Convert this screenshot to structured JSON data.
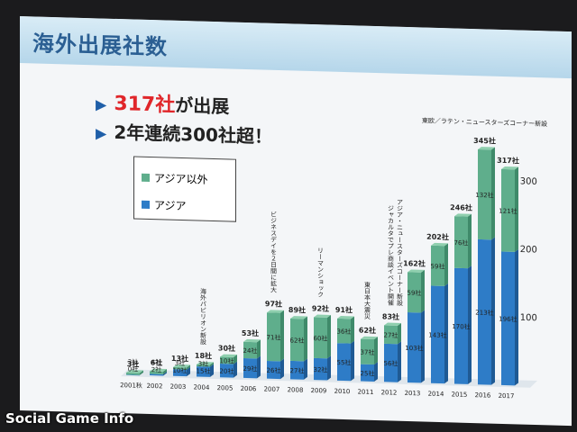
{
  "slide": {
    "title": "海外出展社数",
    "bullet1_highlight": "317社",
    "bullet1_rest": "が出展",
    "bullet2": "2年連続300社超！"
  },
  "legend": {
    "other": "アジア以外",
    "asia": "アジア"
  },
  "watermark": "Social Game Info",
  "colors": {
    "asia": "#2e7cc7",
    "other": "#5fae8c",
    "title": "#2b5f93",
    "highlight": "#e0262a"
  },
  "chart_data": {
    "type": "bar",
    "stacked": true,
    "categories": [
      "2001秋",
      "2002",
      "2003",
      "2004",
      "2005",
      "2006",
      "2007",
      "2008",
      "2009",
      "2010",
      "2011",
      "2012",
      "2013",
      "2014",
      "2015",
      "2016",
      "2017"
    ],
    "series": [
      {
        "name": "アジア",
        "values": [
          0,
          2,
          10,
          15,
          20,
          29,
          26,
          27,
          32,
          55,
          25,
          56,
          103,
          143,
          170,
          213,
          196
        ],
        "labels": [
          "0社",
          "2社",
          "10社",
          "15社",
          "20社",
          "29社",
          "26社",
          "27社",
          "32社",
          "55社",
          "25社",
          "56社",
          "103社",
          "143社",
          "170社",
          "213社",
          "196社"
        ]
      },
      {
        "name": "アジア以外",
        "values": [
          3,
          4,
          3,
          3,
          10,
          24,
          71,
          62,
          60,
          36,
          37,
          27,
          59,
          59,
          76,
          132,
          121
        ],
        "labels": [
          "3社",
          "4社",
          "3社",
          "3社",
          "10社",
          "24社",
          "71社",
          "62社",
          "60社",
          "36社",
          "37社",
          "27社",
          "59社",
          "59社",
          "76社",
          "132社",
          "121社"
        ]
      }
    ],
    "totals": [
      3,
      6,
      13,
      18,
      30,
      53,
      97,
      89,
      92,
      91,
      62,
      83,
      162,
      202,
      246,
      345,
      317
    ],
    "total_labels": [
      "3社",
      "6社",
      "13社",
      "18社",
      "30社",
      "53社",
      "97社",
      "89社",
      "92社",
      "91社",
      "62社",
      "83社",
      "162社",
      "202社",
      "246社",
      "345社",
      "317社"
    ],
    "ylim": [
      0,
      350
    ],
    "yticks": [
      {
        "v": 100,
        "label": "- 100"
      },
      {
        "v": 200,
        "label": "- 200"
      },
      {
        "v": 300,
        "label": "- 300"
      }
    ],
    "annotations": [
      {
        "index": 3,
        "text": "海外パビリオン新設"
      },
      {
        "index": 6,
        "text": "ビジネスデイを２日間に拡大"
      },
      {
        "index": 8,
        "text": "リーマンショック"
      },
      {
        "index": 10,
        "text": "東日本大震災"
      },
      {
        "index": 11,
        "text": "ジャカルタでプレ商談イベント開催"
      },
      {
        "index": 11,
        "text": "アジア・ニュースターズコーナー新設"
      },
      {
        "index": 15,
        "text": "東欧／ラテン・ニュースターズコーナー新設"
      }
    ]
  }
}
